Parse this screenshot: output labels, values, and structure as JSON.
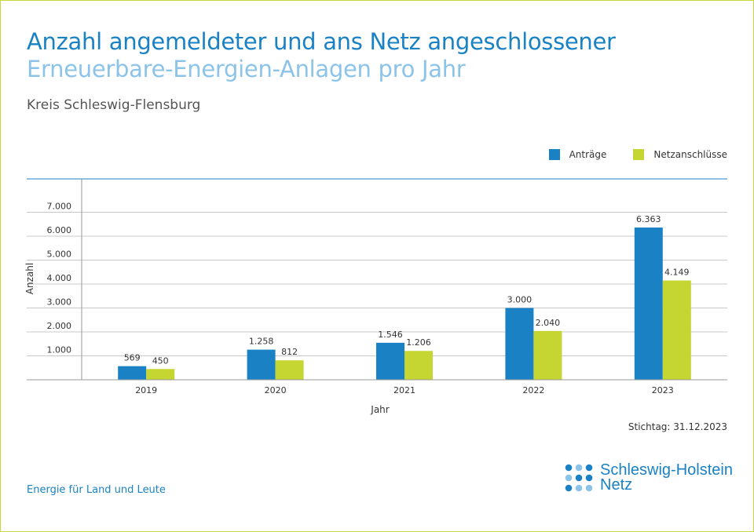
{
  "header": {
    "title_line1": "Anzahl angemeldeter und ans Netz angeschlossener",
    "title_line2": "Erneuerbare-Energien-Anlagen pro Jahr",
    "region": "Kreis Schleswig-Flensburg"
  },
  "colors": {
    "primary": "#1a82c4",
    "secondary": "#c5d531",
    "title_light": "#8cc3e8",
    "frame": "#c7d63b"
  },
  "chart_data": {
    "type": "bar",
    "categories": [
      "2019",
      "2020",
      "2021",
      "2022",
      "2023"
    ],
    "series": [
      {
        "name": "Anträge",
        "values": [
          569,
          1258,
          1546,
          3000,
          6363
        ],
        "labels": [
          "569",
          "1.258",
          "1.546",
          "3.000",
          "6.363"
        ],
        "color": "#1a82c4"
      },
      {
        "name": "Netzanschlüsse",
        "values": [
          450,
          812,
          1206,
          2040,
          4149
        ],
        "labels": [
          "450",
          "812",
          "1.206",
          "2.040",
          "4.149"
        ],
        "color": "#c5d531"
      }
    ],
    "xlabel": "Jahr",
    "ylabel": "Anzahl",
    "yticks": [
      1000,
      2000,
      3000,
      4000,
      5000,
      6000,
      7000
    ],
    "ytick_labels": [
      "1.000",
      "2.000",
      "3.000",
      "4.000",
      "5.000",
      "6.000",
      "7.000"
    ],
    "ylim": [
      0,
      7000
    ],
    "grid": true,
    "legend_position": "top-right"
  },
  "footer": {
    "stichtag": "Stichtag: 31.12.2023",
    "slogan": "Energie für Land und Leute",
    "logo_line1": "Schleswig-Holstein",
    "logo_line2": "Netz",
    "logo_icon": "dot-grid-logo-icon"
  }
}
